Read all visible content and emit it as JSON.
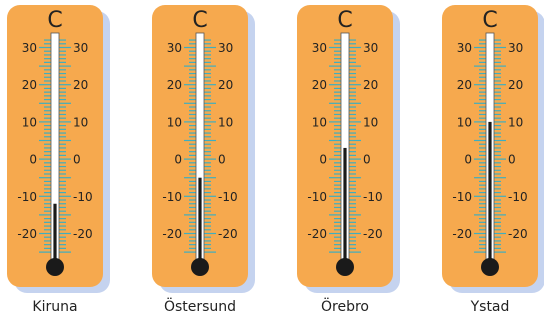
{
  "unit": "C",
  "scale": {
    "min": -25,
    "max": 32,
    "labels": [
      30,
      20,
      10,
      0,
      -10,
      -20
    ]
  },
  "thermometers": [
    {
      "city": "Kiruna",
      "temperature": -12
    },
    {
      "city": "Östersund",
      "temperature": -5
    },
    {
      "city": "Örebro",
      "temperature": 3
    },
    {
      "city": "Ystad",
      "temperature": 10
    }
  ],
  "colors": {
    "body": "#f6a94e",
    "shadow": "#c5d3ef",
    "tick": "#3eaec0",
    "tube": "#ffffff",
    "mercury": "#1a1a1a",
    "text": "#222222"
  }
}
